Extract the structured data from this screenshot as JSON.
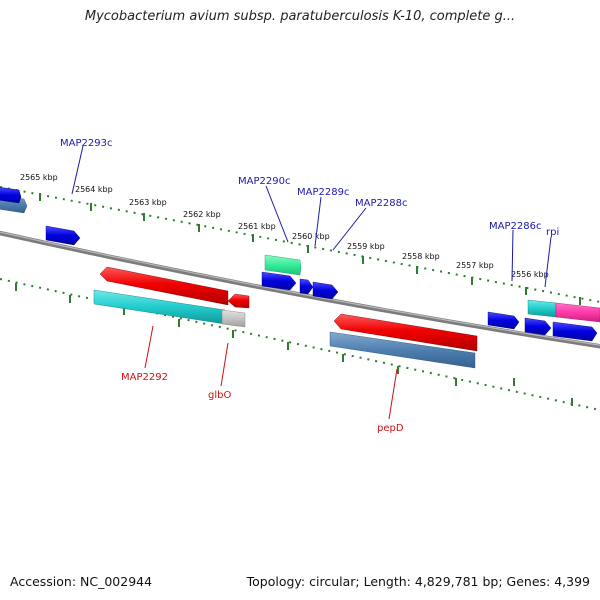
{
  "title": "Mycobacterium avium subsp. paratuberculosis K-10, complete g...",
  "footer": {
    "accession": "Accession: NC_002944",
    "summary": "Topology: circular; Length: 4,829,781 bp; Genes: 4,399"
  },
  "colors": {
    "forward_label": "#1a1aa8",
    "reverse_label": "#cc1111",
    "tick": "#2e7d2e",
    "backbone": "#808080"
  },
  "kbp_labels": [
    "2565 kbp",
    "2564 kbp",
    "2563 kbp",
    "2562 kbp",
    "2561 kbp",
    "2560 kbp",
    "2559 kbp",
    "2558 kbp",
    "2557 kbp",
    "2556 kbp"
  ],
  "forward_genes": [
    "MAP2293c",
    "MAP2290c",
    "MAP2289c",
    "MAP2288c",
    "MAP2286c",
    "rpi"
  ],
  "reverse_genes": [
    "MAP2292",
    "glbO",
    "pepD"
  ]
}
